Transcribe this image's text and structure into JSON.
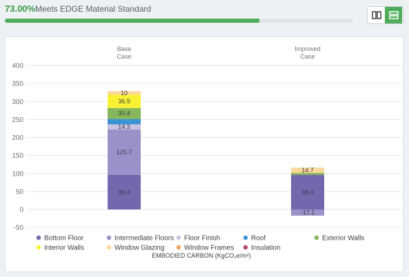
{
  "header": {
    "percent": "73.00%",
    "label": "Meets EDGE Material Standard",
    "progress": 0.73
  },
  "view_toggle": {
    "options": [
      "columns-view-icon",
      "rows-view-icon"
    ],
    "active": 1
  },
  "colors": {
    "accent": "#4fae5b"
  },
  "chart_data": {
    "type": "bar",
    "stacked": true,
    "categories": [
      "Base\nCase",
      "Improved\nCase"
    ],
    "ylim": [
      -50,
      400
    ],
    "yticks": [
      -50,
      0,
      50,
      100,
      150,
      200,
      250,
      300,
      350,
      400
    ],
    "xlabel": "EMBODIED CARBON (KgCO₂e/m²)",
    "ylabel": "",
    "grid": true,
    "legend_position": "bottom",
    "series": [
      {
        "name": "Bottom Floor",
        "color": "#7467ad",
        "values": [
          96.4,
          96.4
        ]
      },
      {
        "name": "Intermediate Floors",
        "color": "#9b91c8",
        "values": [
          125.7,
          -17.1
        ]
      },
      {
        "name": "Floor Finish",
        "color": "#c9c3e3",
        "values": [
          14.3,
          0
        ]
      },
      {
        "name": "Roof",
        "color": "#3a94d4",
        "values": [
          15,
          0
        ]
      },
      {
        "name": "Exterior Walls",
        "color": "#85b75a",
        "values": [
          30.4,
          5
        ]
      },
      {
        "name": "Interior Walls",
        "color": "#f8f232",
        "values": [
          36.9,
          0
        ]
      },
      {
        "name": "Window Glazing",
        "color": "#fbd79a",
        "values": [
          10,
          14.7
        ]
      },
      {
        "name": "Window Frames",
        "color": "#f6a35b",
        "values": [
          0,
          0
        ]
      },
      {
        "name": "Insulation",
        "color": "#b5476e",
        "values": [
          0,
          0
        ]
      }
    ],
    "data_labels": [
      [
        "96.4",
        "125.7",
        "14.3",
        "",
        "30.4",
        "36.9",
        "10",
        "",
        ""
      ],
      [
        "96.4",
        "-17.1",
        "",
        "",
        "",
        "",
        "14.7",
        "",
        ""
      ]
    ]
  }
}
